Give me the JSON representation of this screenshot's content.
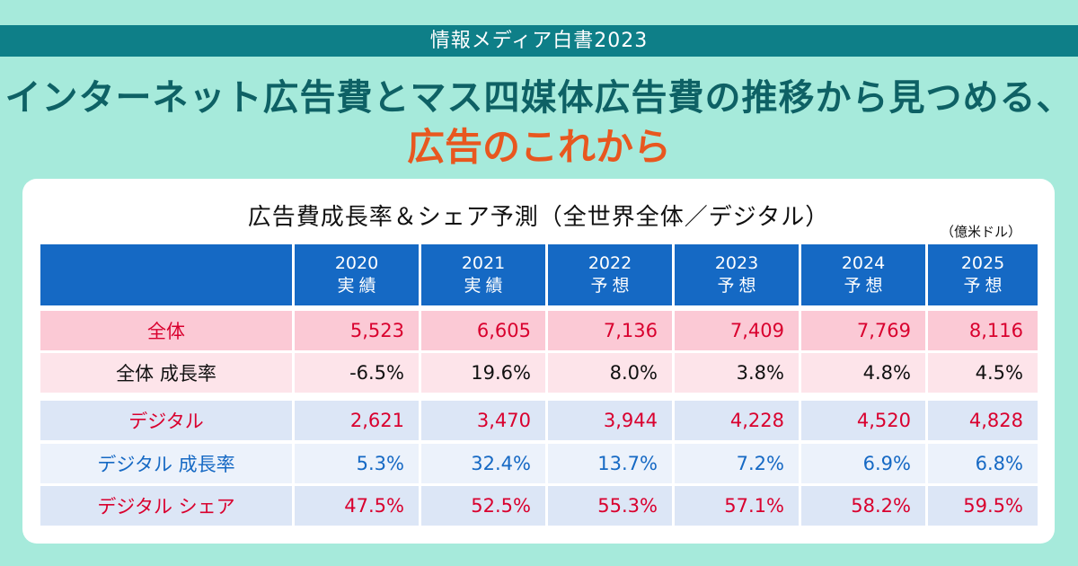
{
  "banner": {
    "label": "情報メディア白書2023"
  },
  "headline": {
    "line1": "インターネット広告費とマス四媒体広告費の推移から見つめる、",
    "line2": "広告のこれから"
  },
  "table": {
    "title": "広告費成長率＆シェア予測（全世界全体／デジタル）",
    "unit": "（億米ドル）",
    "columns": [
      {
        "year": "2020",
        "kind": "実績"
      },
      {
        "year": "2021",
        "kind": "実績"
      },
      {
        "year": "2022",
        "kind": "予想"
      },
      {
        "year": "2023",
        "kind": "予想"
      },
      {
        "year": "2024",
        "kind": "予想"
      },
      {
        "year": "2025",
        "kind": "予想"
      }
    ],
    "rows": [
      {
        "label": "全体",
        "values": [
          "5,523",
          "6,605",
          "7,136",
          "7,409",
          "7,769",
          "8,116"
        ]
      },
      {
        "label": "全体 成長率",
        "values": [
          "-6.5%",
          "19.6%",
          "8.0%",
          "3.8%",
          "4.8%",
          "4.5%"
        ]
      },
      {
        "label": "デジタル",
        "values": [
          "2,621",
          "3,470",
          "3,944",
          "4,228",
          "4,520",
          "4,828"
        ]
      },
      {
        "label": "デジタル 成長率",
        "values": [
          "5.3%",
          "32.4%",
          "13.7%",
          "7.2%",
          "6.9%",
          "6.8%"
        ]
      },
      {
        "label": "デジタル シェア",
        "values": [
          "47.5%",
          "52.5%",
          "55.3%",
          "57.1%",
          "58.2%",
          "59.5%"
        ]
      }
    ]
  },
  "colors": {
    "background": "#a6eadb",
    "banner": "#0e7f88",
    "headline": "#0e6165",
    "headline_accent": "#e8571f",
    "table_header": "#1569c4",
    "total_row": "#fbc9d5",
    "digital_row": "#dce6f6",
    "red_text": "#d9002e",
    "blue_text": "#1669c4"
  }
}
